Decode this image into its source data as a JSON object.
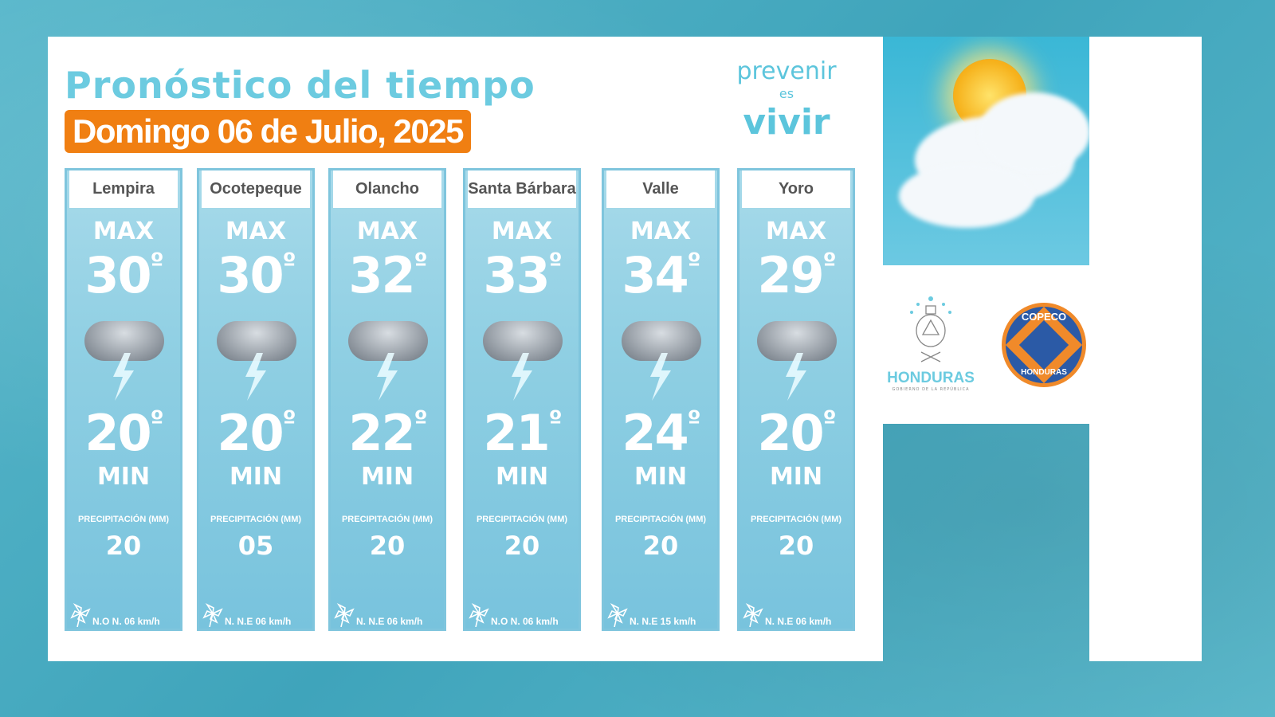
{
  "header": {
    "title": "Pronóstico del tiempo",
    "date": "Domingo 06 de Julio, 2025"
  },
  "brand": {
    "line1": "prevenir",
    "line2": "es",
    "line3": "vivir"
  },
  "labels": {
    "max": "MAX",
    "min": "MIN",
    "precip": "PRECIPITACIÓN (MM)",
    "degree": "º"
  },
  "cards": [
    {
      "name": "Lempira",
      "max": "30",
      "min": "20",
      "precip": "20",
      "wind": "N.O  N.  06 km/h"
    },
    {
      "name": "Ocotepeque",
      "max": "30",
      "min": "20",
      "precip": "05",
      "wind": "N.  N.E 06 km/h"
    },
    {
      "name": "Olancho",
      "max": "32",
      "min": "22",
      "precip": "20",
      "wind": "N.  N.E 06 km/h"
    },
    {
      "name": "Santa Bárbara",
      "max": "33",
      "min": "21",
      "precip": "20",
      "wind": "N.O  N.  06 km/h"
    },
    {
      "name": "Valle",
      "max": "34",
      "min": "24",
      "precip": "20",
      "wind": "N.  N.E  15 km/h"
    },
    {
      "name": "Yoro",
      "max": "29",
      "min": "20",
      "precip": "20",
      "wind": "N.  N.E 06 km/h"
    }
  ],
  "logos": {
    "honduras": "HONDURAS",
    "honduras_sub": "GOBIERNO DE LA REPÚBLICA",
    "copeco_top": "COPECO",
    "copeco_bottom": "HONDURAS"
  },
  "colors": {
    "accent": "#f07f12",
    "title": "#6ccbe0",
    "background": "#4fb0c4",
    "copeco_blue": "#2b5aa6"
  },
  "icons": {
    "weather": "thunderstorm-cloud-icon",
    "wind": "pinwheel-icon"
  }
}
